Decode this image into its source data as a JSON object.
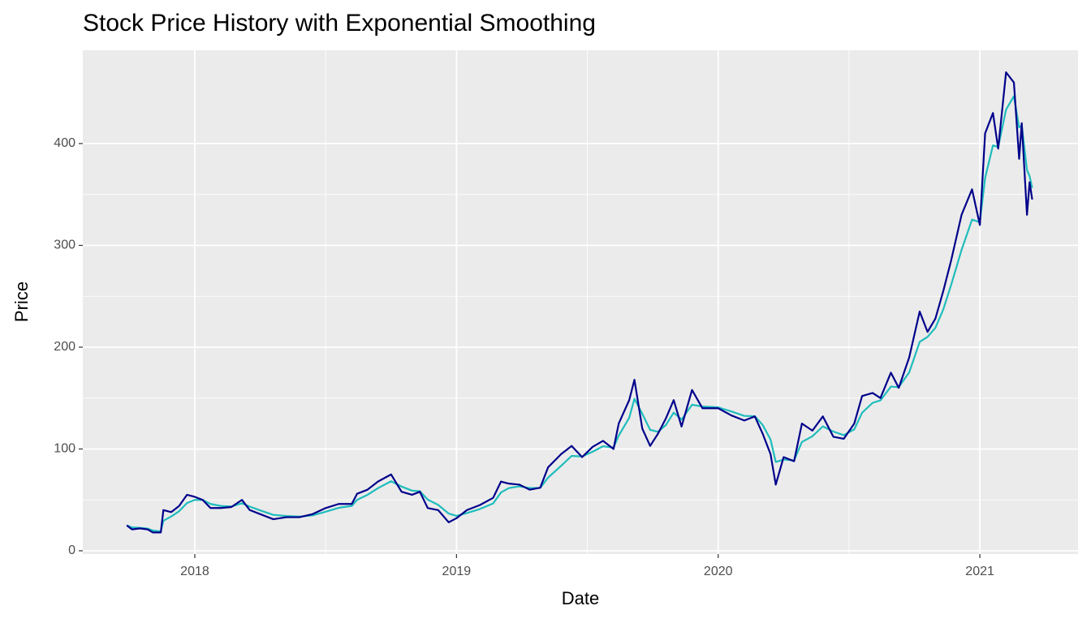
{
  "chart_data": {
    "type": "line",
    "title": "Stock Price History with Exponential Smoothing",
    "x_label": "Date",
    "y_label": "Price",
    "x": [
      2017.74,
      2017.76,
      2017.79,
      2017.82,
      2017.84,
      2017.87,
      2017.88,
      2017.91,
      2017.94,
      2017.97,
      2018.0,
      2018.03,
      2018.06,
      2018.1,
      2018.14,
      2018.18,
      2018.21,
      2018.25,
      2018.3,
      2018.35,
      2018.4,
      2018.45,
      2018.5,
      2018.55,
      2018.6,
      2018.62,
      2018.66,
      2018.7,
      2018.75,
      2018.79,
      2018.83,
      2018.86,
      2018.89,
      2018.93,
      2018.97,
      2019.0,
      2019.04,
      2019.09,
      2019.14,
      2019.17,
      2019.2,
      2019.24,
      2019.28,
      2019.32,
      2019.35,
      2019.4,
      2019.44,
      2019.48,
      2019.52,
      2019.56,
      2019.6,
      2019.62,
      2019.66,
      2019.68,
      2019.71,
      2019.74,
      2019.77,
      2019.8,
      2019.83,
      2019.86,
      2019.9,
      2019.94,
      2020.0,
      2020.05,
      2020.1,
      2020.14,
      2020.17,
      2020.2,
      2020.22,
      2020.25,
      2020.29,
      2020.32,
      2020.36,
      2020.4,
      2020.44,
      2020.48,
      2020.52,
      2020.55,
      2020.59,
      2020.62,
      2020.66,
      2020.69,
      2020.73,
      2020.77,
      2020.8,
      2020.83,
      2020.86,
      2020.89,
      2020.93,
      2020.97,
      2021.0,
      2021.02,
      2021.05,
      2021.07,
      2021.1,
      2021.13,
      2021.15,
      2021.16,
      2021.18,
      2021.19,
      2021.2
    ],
    "series": [
      {
        "color": "#1fbcbc",
        "values": [
          25,
          23,
          22.5,
          21.8,
          19.9,
          19,
          29.5,
          33.7,
          38.9,
          46.9,
          50,
          50,
          46,
          44,
          43.5,
          46.7,
          43.4,
          39.7,
          35.3,
          34.2,
          33.6,
          34.8,
          38.4,
          42.2,
          44.1,
          50,
          55,
          61.5,
          68.3,
          63.1,
          59.1,
          58.5,
          50.3,
          45.1,
          36.6,
          34.3,
          37.1,
          41.1,
          46.5,
          57.3,
          61.6,
          63.3,
          61.7,
          61.8,
          71.9,
          83.5,
          93.2,
          92.6,
          97.3,
          102.7,
          101.3,
          113.2,
          130.6,
          149.3,
          134.6,
          118.8,
          116.9,
          123.5,
          135.7,
          128.9,
          143.4,
          141.7,
          140.9,
          136.9,
          132.5,
          132.2,
          123.6,
          109.3,
          87.2,
          89.6,
          88.8,
          106.9,
          112.5,
          122.2,
          117.1,
          113.6,
          119.3,
          135.6,
          145.3,
          147.7,
          161.3,
          160.7,
          175.3,
          205.2,
          210.1,
          219,
          237,
          261,
          295.5,
          325.3,
          322.6,
          366.3,
          398.2,
          396.6,
          433.3,
          446.6,
          415.8,
          417.9,
          373.9,
          368,
          356.5
        ]
      },
      {
        "color": "#00008b",
        "values": [
          25,
          21,
          22,
          21,
          18,
          18,
          40,
          38,
          44,
          55,
          53,
          50,
          42,
          42,
          43,
          50,
          40,
          36,
          31,
          33,
          33,
          36,
          42,
          46,
          46,
          56,
          60,
          68,
          75,
          58,
          55,
          58,
          42,
          40,
          28,
          32,
          40,
          45,
          52,
          68,
          66,
          65,
          60,
          62,
          82,
          95,
          103,
          92,
          102,
          108,
          100,
          125,
          148,
          168,
          120,
          103,
          115,
          130,
          148,
          122,
          158,
          140,
          140,
          133,
          128,
          132,
          115,
          95,
          65,
          92,
          88,
          125,
          118,
          132,
          112,
          110,
          125,
          152,
          155,
          150,
          175,
          160,
          190,
          235,
          215,
          228,
          255,
          285,
          330,
          355,
          320,
          410,
          430,
          395,
          470,
          460,
          385,
          420,
          330,
          362,
          345
        ]
      }
    ],
    "xlim": [
      2017.572,
      2021.375
    ],
    "xticks": [
      2018,
      2019,
      2020,
      2021
    ],
    "ylim": [
      -3.2,
      491.6
    ],
    "yticks": [
      0,
      100,
      200,
      300,
      400
    ],
    "grid": true
  }
}
